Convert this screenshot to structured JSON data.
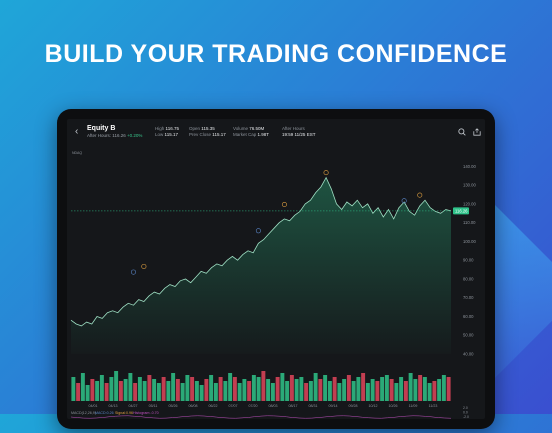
{
  "promo": {
    "title": "BUILD YOUR TRADING CONFIDENCE"
  },
  "header": {
    "back_icon": "chevron-left-icon",
    "name": "Equity B",
    "after_hours_label": "After Hours",
    "after_hours_value": "116.26",
    "after_hours_change": "+0.20%",
    "high_label": "High",
    "high_value": "116.75",
    "low_label": "Low",
    "low_value": "115.17",
    "open_label": "Open",
    "open_value": "115.35",
    "prev_close_label": "Prev Close",
    "prev_close_value": "115.17",
    "volume_label": "Volume",
    "volume_value": "76.50M",
    "mktcap_label": "Market Cap",
    "mktcap_value": "1.98T",
    "afterhours_time_label": "After Hours",
    "afterhours_time_value": "19:59 11/25 EST",
    "search_icon": "search-icon",
    "share_icon": "share-icon"
  },
  "symbol_tag": "NDAQ",
  "colors": {
    "up": "#2fc38a",
    "down": "#e0455c",
    "line": "#9fe0c4",
    "price_tag": "#2fc38a",
    "marker": "#e0a040",
    "marker_blue": "#5a86c8",
    "background": "#15171a"
  },
  "chart_data": {
    "type": "area",
    "y_axis_ticks": [
      "140.00",
      "130.00",
      "120.00",
      "110.00",
      "100.00",
      "90.00",
      "80.00",
      "70.00",
      "60.00",
      "50.00",
      "40.00"
    ],
    "ylim": [
      40,
      145
    ],
    "current_price_label": "116.26",
    "current_price": 116.26,
    "x_labels": [
      "04/01",
      "04/13",
      "04/27",
      "05/11",
      "05/26",
      "06/08",
      "06/22",
      "07/07",
      "07/20",
      "08/03",
      "08/17",
      "08/31",
      "09/14",
      "09/28",
      "10/12",
      "10/26",
      "11/09",
      "11/23"
    ],
    "price_path": [
      [
        0,
        58
      ],
      [
        2,
        56
      ],
      [
        4,
        55
      ],
      [
        6,
        57
      ],
      [
        8,
        56
      ],
      [
        10,
        60
      ],
      [
        12,
        59
      ],
      [
        14,
        62
      ],
      [
        16,
        63
      ],
      [
        18,
        62
      ],
      [
        20,
        65
      ],
      [
        22,
        67
      ],
      [
        24,
        66
      ],
      [
        26,
        69
      ],
      [
        28,
        68
      ],
      [
        30,
        71
      ],
      [
        32,
        73
      ],
      [
        34,
        72
      ],
      [
        36,
        75
      ],
      [
        38,
        77
      ],
      [
        40,
        76
      ],
      [
        42,
        79
      ],
      [
        44,
        80
      ],
      [
        46,
        78
      ],
      [
        48,
        81
      ],
      [
        50,
        84
      ],
      [
        52,
        83
      ],
      [
        54,
        86
      ],
      [
        56,
        88
      ],
      [
        58,
        87
      ],
      [
        60,
        90
      ],
      [
        62,
        92
      ],
      [
        64,
        90
      ],
      [
        66,
        93
      ],
      [
        68,
        95
      ],
      [
        70,
        94
      ],
      [
        72,
        99
      ],
      [
        74,
        101
      ],
      [
        76,
        104
      ],
      [
        78,
        107
      ],
      [
        80,
        110
      ],
      [
        82,
        112
      ],
      [
        84,
        111
      ],
      [
        86,
        114
      ],
      [
        88,
        116
      ],
      [
        90,
        120
      ],
      [
        92,
        122
      ],
      [
        94,
        126
      ],
      [
        96,
        129
      ],
      [
        98,
        134
      ],
      [
        100,
        128
      ],
      [
        102,
        120
      ],
      [
        104,
        117
      ],
      [
        106,
        121
      ],
      [
        108,
        119
      ],
      [
        110,
        122
      ],
      [
        112,
        118
      ],
      [
        114,
        120
      ],
      [
        116,
        115
      ],
      [
        118,
        118
      ],
      [
        120,
        113
      ],
      [
        122,
        117
      ],
      [
        124,
        112
      ],
      [
        126,
        118
      ],
      [
        128,
        121
      ],
      [
        130,
        116
      ],
      [
        132,
        114
      ],
      [
        134,
        119
      ],
      [
        136,
        122
      ],
      [
        138,
        118
      ],
      [
        140,
        116
      ],
      [
        142,
        115
      ],
      [
        144,
        117
      ],
      [
        146,
        116.26
      ]
    ],
    "volume": [
      12,
      9,
      14,
      8,
      11,
      10,
      13,
      9,
      12,
      15,
      10,
      11,
      14,
      9,
      12,
      10,
      13,
      11,
      9,
      12,
      10,
      14,
      11,
      9,
      13,
      12,
      10,
      8,
      11,
      13,
      9,
      12,
      10,
      14,
      12,
      9,
      11,
      10,
      13,
      12,
      15,
      11,
      9,
      12,
      14,
      10,
      13,
      11,
      12,
      9,
      10,
      14,
      11,
      13,
      10,
      12,
      9,
      11,
      13,
      10,
      12,
      14,
      9,
      11,
      10,
      12,
      13,
      11,
      9,
      12,
      10,
      14,
      11,
      13,
      12,
      9,
      10,
      11,
      13,
      12
    ],
    "macd_label": "MACD(12,26,9)",
    "macd_value_label": "MACD:0.26",
    "signal_label": "Signal:0.96",
    "histogram_label": "Histogram:-0.70",
    "macd_axis": [
      "2.0",
      "0.0",
      "-2.0"
    ]
  }
}
